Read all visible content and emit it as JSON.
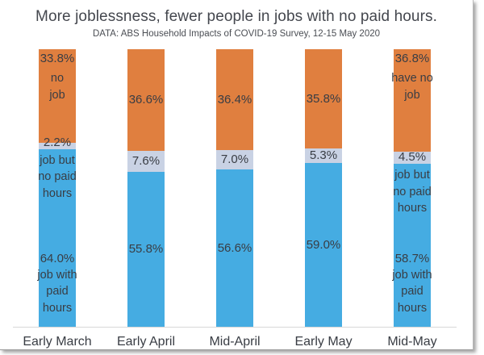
{
  "page": {
    "title": "More joblessness, fewer people in jobs with no paid hours.",
    "subtitle": "DATA: ABS Household Impacts of COVID-19 Survey, 12-15 May 2020"
  },
  "colors": {
    "no_job": "#E07F3F",
    "job_no_paid_hours": "#C9D2E4",
    "job_paid_hours": "#45ACE2",
    "label_text": "#393D44",
    "title_text": "#44474E",
    "subtitle_text": "#4B4E54",
    "axis_line": "#D8D8D8"
  },
  "chart_data": {
    "type": "bar",
    "stacked": true,
    "orientation": "vertical",
    "title": "More joblessness, fewer people in jobs with no paid hours.",
    "subtitle": "DATA: ABS Household Impacts of COVID-19 Survey, 12-15 May 2020",
    "categories": [
      "Early March",
      "Early April",
      "Mid-April",
      "Early May",
      "Mid-May"
    ],
    "series": [
      {
        "name": "no job",
        "values": [
          33.8,
          36.6,
          36.4,
          35.8,
          36.8
        ]
      },
      {
        "name": "job but no paid hours",
        "values": [
          2.2,
          7.6,
          7.0,
          5.3,
          4.5
        ]
      },
      {
        "name": "job with paid hours",
        "values": [
          64.0,
          55.8,
          56.6,
          59.0,
          58.7
        ]
      }
    ],
    "ylim": [
      0,
      100
    ],
    "value_suffix": "%",
    "grid": false,
    "legend": "none - inline annotations on first and last bars",
    "annotations": [
      {
        "bar_index": 0,
        "no_job_lines": [
          "no",
          "job"
        ],
        "no_paid_lines": [
          "job but",
          "no paid",
          "hours"
        ],
        "paid_lines": [
          "job with",
          "paid",
          "hours"
        ]
      },
      {
        "bar_index": 4,
        "no_job_lines": [
          "have no",
          "job"
        ],
        "no_paid_lines": [
          "job but",
          "no paid",
          "hours"
        ],
        "paid_lines": [
          "job with",
          "paid",
          "hours"
        ]
      }
    ]
  }
}
